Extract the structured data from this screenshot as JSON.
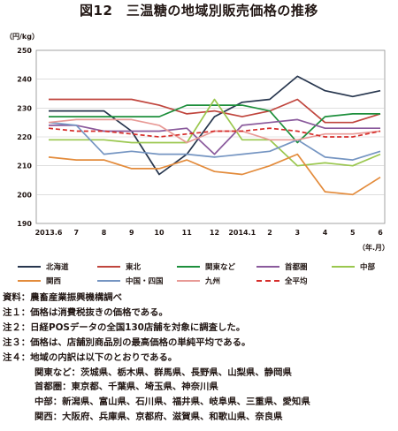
{
  "title": "図12　三温糖の地域別販売価格の推移",
  "chart_data": {
    "type": "line",
    "ylabel": "（円/kg）",
    "xlabel": "（年.月）",
    "ylim": [
      190,
      250
    ],
    "yticks": [
      190,
      200,
      210,
      220,
      230,
      240,
      250
    ],
    "grid": true,
    "x": [
      "2013.6",
      "7",
      "8",
      "9",
      "10",
      "11",
      "12",
      "2014.1",
      "2",
      "3",
      "4",
      "5",
      "6"
    ],
    "series": [
      {
        "name": "北海道",
        "color": "#27364e",
        "dash": false,
        "values": [
          229,
          229,
          229,
          222,
          207,
          214,
          227,
          232,
          233,
          241,
          236,
          234,
          236
        ]
      },
      {
        "name": "東北",
        "color": "#c0453d",
        "dash": false,
        "values": [
          233,
          233,
          233,
          233,
          231,
          228,
          229,
          227,
          229,
          233,
          225,
          225,
          228
        ]
      },
      {
        "name": "関東など",
        "color": "#1d8f3c",
        "dash": false,
        "values": [
          227,
          227,
          227,
          227,
          227,
          231,
          231,
          231,
          229,
          218,
          227,
          228,
          228
        ]
      },
      {
        "name": "首都圏",
        "color": "#8a5a9c",
        "dash": false,
        "values": [
          224,
          224,
          222,
          222,
          222,
          223,
          214,
          224,
          225,
          226,
          223,
          223,
          223
        ]
      },
      {
        "name": "中部",
        "color": "#9ac74e",
        "dash": false,
        "values": [
          219,
          219,
          219,
          218,
          218,
          218,
          233,
          219,
          219,
          210,
          211,
          210,
          214
        ]
      },
      {
        "name": "関西",
        "color": "#e38b3b",
        "dash": false,
        "values": [
          213,
          212,
          212,
          209,
          209,
          212,
          208,
          207,
          210,
          214,
          201,
          200,
          206
        ]
      },
      {
        "name": "中国・四国",
        "color": "#7595c2",
        "dash": false,
        "values": [
          225,
          224,
          214,
          215,
          214,
          214,
          213,
          214,
          215,
          219,
          213,
          212,
          215
        ]
      },
      {
        "name": "九州",
        "color": "#e89a96",
        "dash": false,
        "values": [
          225,
          226,
          226,
          226,
          224,
          218,
          222,
          222,
          219,
          219,
          221,
          221,
          222
        ]
      },
      {
        "name": "全平均",
        "color": "#d62d2a",
        "dash": true,
        "values": [
          223,
          222,
          222,
          221,
          220,
          221,
          222,
          222,
          223,
          222,
          220,
          220,
          222
        ]
      }
    ]
  },
  "notes": [
    {
      "text": "資料：農畜産業振興機構調べ",
      "indent": false
    },
    {
      "text": "注１：価格は消費税抜きの価格である。",
      "indent": false
    },
    {
      "text": "注２：日経POSデータの全国130店舗を対象に調査した。",
      "indent": false
    },
    {
      "text": "注３：価格は、店舗別商品別の最高価格の単純平均である。",
      "indent": false
    },
    {
      "text": "注４：地域の内訳は以下のとおりである。",
      "indent": false
    },
    {
      "text": "関東など：茨城県、栃木県、群馬県、長野県、山梨県、静岡県",
      "indent": true
    },
    {
      "text": "首都圏：東京都、千葉県、埼玉県、神奈川県",
      "indent": true
    },
    {
      "text": "中部：新潟県、富山県、石川県、福井県、岐阜県、三重県、愛知県",
      "indent": true
    },
    {
      "text": "関西：大阪府、兵庫県、京都府、滋賀県、和歌山県、奈良県",
      "indent": true
    }
  ]
}
